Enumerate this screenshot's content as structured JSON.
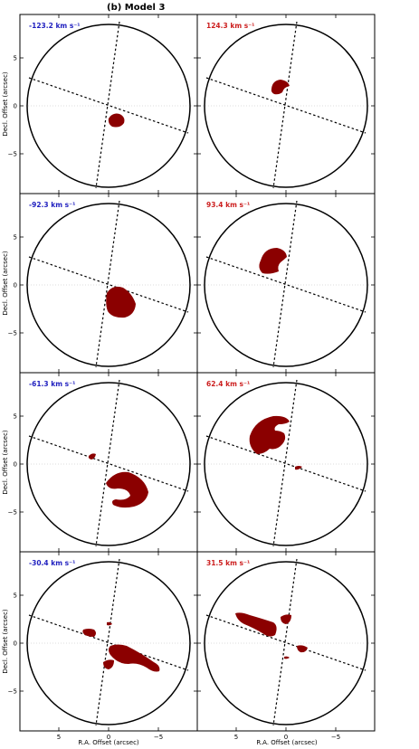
{
  "figure_title": "(b) Model 3",
  "colors": {
    "blue_label": "#1f1fbf",
    "red_label": "#cc1f1f",
    "emission": "#8b0000"
  },
  "chart_data": {
    "type": "channel_map_grid",
    "title": "(b) Model 3",
    "xlabel": "R.A. Offset (arcsec)",
    "ylabel": "Decl. Offset (arcsec)",
    "xlim": [
      9,
      -9
    ],
    "ylim": [
      -9,
      9
    ],
    "xticks": [
      "5",
      "0",
      "−5"
    ],
    "yticks": [
      "5",
      "0",
      "−5"
    ],
    "panels": [
      {
        "velocity_label": "-123.2 km s⁻¹",
        "color": "blue",
        "row": 0,
        "col": 0
      },
      {
        "velocity_label": "124.3 km s⁻¹",
        "color": "red",
        "row": 0,
        "col": 1
      },
      {
        "velocity_label": "-92.3 km s⁻¹",
        "color": "blue",
        "row": 1,
        "col": 0
      },
      {
        "velocity_label": "93.4 km s⁻¹",
        "color": "red",
        "row": 1,
        "col": 1
      },
      {
        "velocity_label": "-61.3 km s⁻¹",
        "color": "blue",
        "row": 2,
        "col": 0
      },
      {
        "velocity_label": "62.4 km s⁻¹",
        "color": "red",
        "row": 2,
        "col": 1
      },
      {
        "velocity_label": "-30.4 km s⁻¹",
        "color": "blue",
        "row": 3,
        "col": 0
      },
      {
        "velocity_label": "31.5 km s⁻¹",
        "color": "red",
        "row": 3,
        "col": 1
      }
    ]
  }
}
